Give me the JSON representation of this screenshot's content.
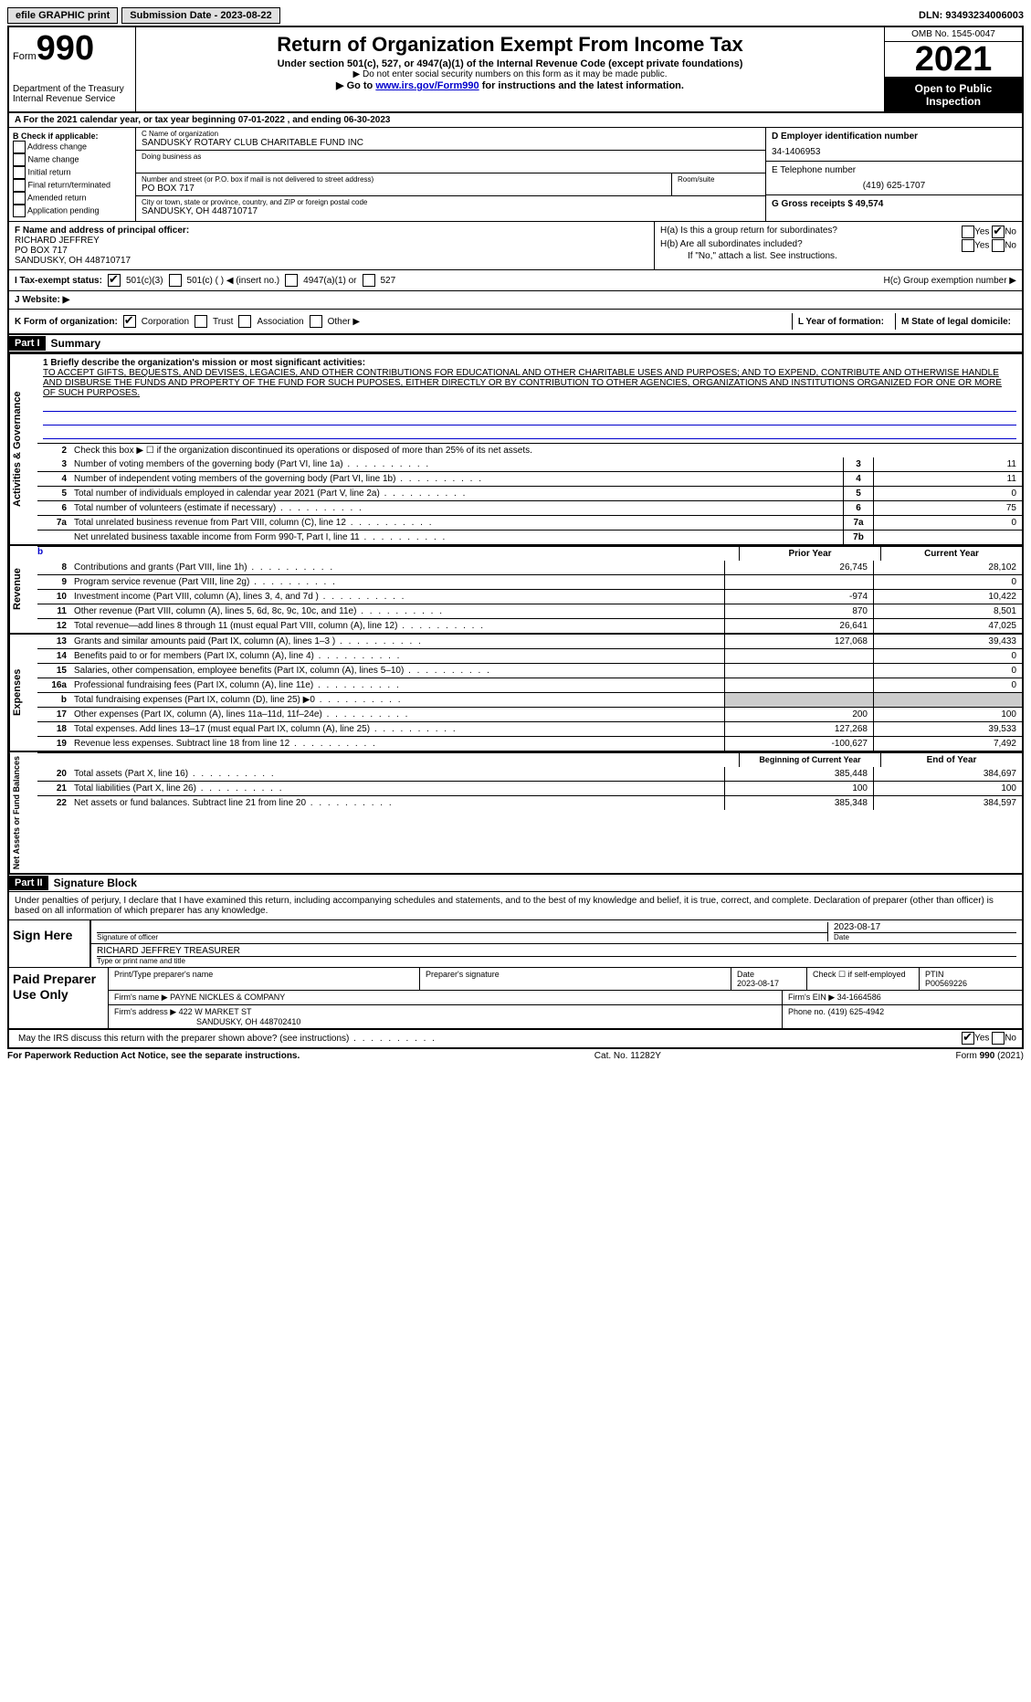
{
  "topbar": {
    "efile": "efile GRAPHIC print",
    "submission": "Submission Date - 2023-08-22",
    "dln": "DLN: 93493234006003"
  },
  "header": {
    "form_word": "Form",
    "form_num": "990",
    "dept": "Department of the Treasury",
    "irs": "Internal Revenue Service",
    "title": "Return of Organization Exempt From Income Tax",
    "sub1": "Under section 501(c), 527, or 4947(a)(1) of the Internal Revenue Code (except private foundations)",
    "sub2": "▶ Do not enter social security numbers on this form as it may be made public.",
    "sub3_pre": "▶ Go to ",
    "sub3_link": "www.irs.gov/Form990",
    "sub3_post": " for instructions and the latest information.",
    "omb": "OMB No. 1545-0047",
    "year": "2021",
    "open": "Open to Public Inspection"
  },
  "rowA": "For the 2021 calendar year, or tax year beginning 07-01-2022    , and ending 06-30-2023",
  "colB": {
    "title": "B Check if applicable:",
    "items": [
      "Address change",
      "Name change",
      "Initial return",
      "Final return/terminated",
      "Amended return",
      "Application pending"
    ]
  },
  "colC": {
    "name_label": "C Name of organization",
    "name": "SANDUSKY ROTARY CLUB CHARITABLE FUND INC",
    "dba_label": "Doing business as",
    "addr_label": "Number and street (or P.O. box if mail is not delivered to street address)",
    "addr": "PO BOX 717",
    "room_label": "Room/suite",
    "city_label": "City or town, state or province, country, and ZIP or foreign postal code",
    "city": "SANDUSKY, OH  448710717"
  },
  "colD": {
    "ein_label": "D Employer identification number",
    "ein": "34-1406953",
    "phone_label": "E Telephone number",
    "phone": "(419) 625-1707",
    "gross_label": "G Gross receipts $",
    "gross": "49,574"
  },
  "rowF": {
    "label": "F  Name and address of principal officer:",
    "name": "RICHARD JEFFREY",
    "addr": "PO BOX 717",
    "city": "SANDUSKY, OH  448710717"
  },
  "rowH": {
    "ha": "H(a)  Is this a group return for subordinates?",
    "hb": "H(b)  Are all subordinates included?",
    "hb_note": "If \"No,\" attach a list. See instructions.",
    "hc": "H(c)  Group exemption number ▶",
    "yes": "Yes",
    "no": "No"
  },
  "rowI": {
    "label": "I   Tax-exempt status:",
    "o1": "501(c)(3)",
    "o2": "501(c) (  ) ◀ (insert no.)",
    "o3": "4947(a)(1) or",
    "o4": "527"
  },
  "rowJ": "J   Website: ▶",
  "rowK": {
    "label": "K Form of organization:",
    "o1": "Corporation",
    "o2": "Trust",
    "o3": "Association",
    "o4": "Other ▶",
    "l": "L Year of formation:",
    "m": "M State of legal domicile:"
  },
  "part1": {
    "hdr": "Part I",
    "title": "Summary",
    "side_ag": "Activities & Governance",
    "side_rev": "Revenue",
    "side_exp": "Expenses",
    "side_net": "Net Assets or Fund Balances",
    "l1_label": "1  Briefly describe the organization's mission or most significant activities:",
    "l1_text": "TO ACCEPT GIFTS, BEQUESTS, AND DEVISES, LEGACIES, AND OTHER CONTRIBUTIONS FOR EDUCATIONAL AND OTHER CHARITABLE USES AND PURPOSES; AND TO EXPEND, CONTRIBUTE AND OTHERWISE HANDLE AND DISBURSE THE FUNDS AND PROPERTY OF THE FUND FOR SUCH PUPOSES, EITHER DIRECTLY OR BY CONTRIBUTION TO OTHER AGENCIES, ORGANIZATIONS AND INSTITUTIONS ORGANIZED FOR ONE OR MORE OF SUCH PURPOSES.",
    "l2": "Check this box ▶ ☐  if the organization discontinued its operations or disposed of more than 25% of its net assets.",
    "lines_ag": [
      {
        "n": "3",
        "d": "Number of voting members of the governing body (Part VI, line 1a)",
        "b": "3",
        "v": "11"
      },
      {
        "n": "4",
        "d": "Number of independent voting members of the governing body (Part VI, line 1b)",
        "b": "4",
        "v": "11"
      },
      {
        "n": "5",
        "d": "Total number of individuals employed in calendar year 2021 (Part V, line 2a)",
        "b": "5",
        "v": "0"
      },
      {
        "n": "6",
        "d": "Total number of volunteers (estimate if necessary)",
        "b": "6",
        "v": "75"
      },
      {
        "n": "7a",
        "d": "Total unrelated business revenue from Part VIII, column (C), line 12",
        "b": "7a",
        "v": "0"
      },
      {
        "n": "",
        "d": "Net unrelated business taxable income from Form 990-T, Part I, line 11",
        "b": "7b",
        "v": ""
      }
    ],
    "hdr_prior": "Prior Year",
    "hdr_curr": "Current Year",
    "lines_rev": [
      {
        "n": "8",
        "d": "Contributions and grants (Part VIII, line 1h)",
        "p": "26,745",
        "c": "28,102"
      },
      {
        "n": "9",
        "d": "Program service revenue (Part VIII, line 2g)",
        "p": "",
        "c": "0"
      },
      {
        "n": "10",
        "d": "Investment income (Part VIII, column (A), lines 3, 4, and 7d )",
        "p": "-974",
        "c": "10,422"
      },
      {
        "n": "11",
        "d": "Other revenue (Part VIII, column (A), lines 5, 6d, 8c, 9c, 10c, and 11e)",
        "p": "870",
        "c": "8,501"
      },
      {
        "n": "12",
        "d": "Total revenue—add lines 8 through 11 (must equal Part VIII, column (A), line 12)",
        "p": "26,641",
        "c": "47,025"
      }
    ],
    "lines_exp": [
      {
        "n": "13",
        "d": "Grants and similar amounts paid (Part IX, column (A), lines 1–3 )",
        "p": "127,068",
        "c": "39,433"
      },
      {
        "n": "14",
        "d": "Benefits paid to or for members (Part IX, column (A), line 4)",
        "p": "",
        "c": "0"
      },
      {
        "n": "15",
        "d": "Salaries, other compensation, employee benefits (Part IX, column (A), lines 5–10)",
        "p": "",
        "c": "0"
      },
      {
        "n": "16a",
        "d": "Professional fundraising fees (Part IX, column (A), line 11e)",
        "p": "",
        "c": "0"
      },
      {
        "n": "b",
        "d": "Total fundraising expenses (Part IX, column (D), line 25) ▶0",
        "p": "shaded",
        "c": "shaded"
      },
      {
        "n": "17",
        "d": "Other expenses (Part IX, column (A), lines 11a–11d, 11f–24e)",
        "p": "200",
        "c": "100"
      },
      {
        "n": "18",
        "d": "Total expenses. Add lines 13–17 (must equal Part IX, column (A), line 25)",
        "p": "127,268",
        "c": "39,533"
      },
      {
        "n": "19",
        "d": "Revenue less expenses. Subtract line 18 from line 12",
        "p": "-100,627",
        "c": "7,492"
      }
    ],
    "hdr_begin": "Beginning of Current Year",
    "hdr_end": "End of Year",
    "lines_net": [
      {
        "n": "20",
        "d": "Total assets (Part X, line 16)",
        "p": "385,448",
        "c": "384,697"
      },
      {
        "n": "21",
        "d": "Total liabilities (Part X, line 26)",
        "p": "100",
        "c": "100"
      },
      {
        "n": "22",
        "d": "Net assets or fund balances. Subtract line 21 from line 20",
        "p": "385,348",
        "c": "384,597"
      }
    ]
  },
  "part2": {
    "hdr": "Part II",
    "title": "Signature Block",
    "intro": "Under penalties of perjury, I declare that I have examined this return, including accompanying schedules and statements, and to the best of my knowledge and belief, it is true, correct, and complete. Declaration of preparer (other than officer) is based on all information of which preparer has any knowledge.",
    "sign_here": "Sign Here",
    "sig_officer": "Signature of officer",
    "sig_date": "2023-08-17",
    "date_label": "Date",
    "officer_name": "RICHARD JEFFREY TREASURER",
    "type_label": "Type or print name and title",
    "paid": "Paid Preparer Use Only",
    "prep_name_label": "Print/Type preparer's name",
    "prep_sig_label": "Preparer's signature",
    "prep_date": "2023-08-17",
    "check_self": "Check ☐ if self-employed",
    "ptin_label": "PTIN",
    "ptin": "P00569226",
    "firm_name_label": "Firm's name    ▶",
    "firm_name": "PAYNE NICKLES & COMPANY",
    "firm_ein_label": "Firm's EIN ▶",
    "firm_ein": "34-1664586",
    "firm_addr_label": "Firm's address ▶",
    "firm_addr": "422 W MARKET ST",
    "firm_city": "SANDUSKY, OH  448702410",
    "phone_label": "Phone no.",
    "phone": "(419) 625-4942",
    "discuss": "May the IRS discuss this return with the preparer shown above? (see instructions)"
  },
  "footer": {
    "left": "For Paperwork Reduction Act Notice, see the separate instructions.",
    "mid": "Cat. No. 11282Y",
    "right": "Form 990 (2021)"
  }
}
